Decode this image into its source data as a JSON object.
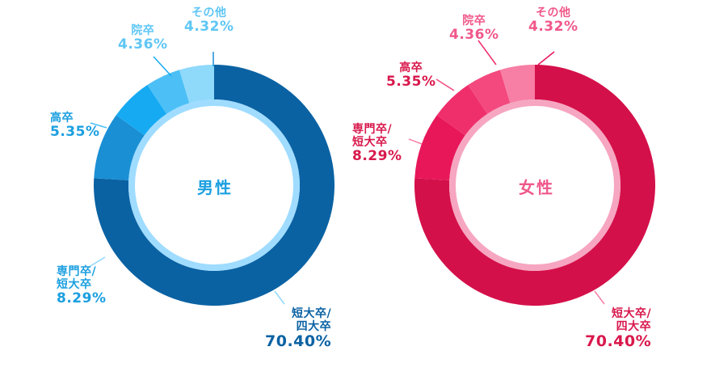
{
  "chart_data": [
    {
      "type": "pie",
      "donut": true,
      "title": "男性",
      "categories": [
        "短大卒/四大卒",
        "専門卒/短大卒",
        "高卒",
        "院卒",
        "その他"
      ],
      "values": [
        70.4,
        8.29,
        5.35,
        4.36,
        4.32
      ],
      "labels": [
        {
          "name": "短大卒/",
          "name2": "四大卒",
          "value": "70.40%"
        },
        {
          "name": "専門卒/",
          "name2": "短大卒",
          "value": "8.29%"
        },
        {
          "name": "高卒",
          "value": "5.35%"
        },
        {
          "name": "院卒",
          "value": "4.36%"
        },
        {
          "name": "その他",
          "value": "4.32%"
        }
      ],
      "colors": [
        "#0a62a3",
        "#1a8fd4",
        "#16aaf2",
        "#4cc0f6",
        "#8fd9fb"
      ],
      "inner_ring_color": "#9fdcff",
      "center_color": "#1b9fe0"
    },
    {
      "type": "pie",
      "donut": true,
      "title": "女性",
      "categories": [
        "短大卒/四大卒",
        "専門卒/短大卒",
        "高卒",
        "院卒",
        "その他"
      ],
      "values": [
        70.4,
        8.29,
        5.35,
        4.36,
        4.32
      ],
      "labels": [
        {
          "name": "短大卒/",
          "name2": "四大卒",
          "value": "70.40%"
        },
        {
          "name": "専門卒/",
          "name2": "短大卒",
          "value": "8.29%"
        },
        {
          "name": "高卒",
          "value": "5.35%"
        },
        {
          "name": "院卒",
          "value": "4.36%"
        },
        {
          "name": "その他",
          "value": "4.32%"
        }
      ],
      "colors": [
        "#d4104a",
        "#e8175a",
        "#ef2f6c",
        "#f3497e",
        "#f77ea4"
      ],
      "inner_ring_color": "#f6a6c0",
      "center_color": "#f0588a"
    }
  ]
}
